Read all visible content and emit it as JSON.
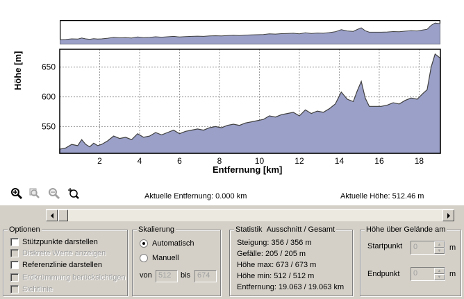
{
  "chart_data": {
    "type": "area",
    "xlabel": "Entfernung [km]",
    "ylabel": "Höhe [m]",
    "xlim": [
      0,
      19.063
    ],
    "ylim": [
      505,
      680
    ],
    "x_ticks": [
      2,
      4,
      6,
      8,
      10,
      12,
      14,
      16,
      18
    ],
    "y_ticks": [
      550,
      600,
      650
    ],
    "fill_color": "#9aa0c8",
    "line_color": "#404040",
    "series": [
      {
        "x": [
          0,
          0.3,
          0.6,
          0.9,
          1.1,
          1.3,
          1.5,
          1.7,
          1.9,
          2.1,
          2.4,
          2.7,
          3.0,
          3.3,
          3.6,
          3.9,
          4.2,
          4.5,
          4.8,
          5.1,
          5.4,
          5.7,
          6.0,
          6.3,
          6.6,
          6.9,
          7.2,
          7.5,
          7.8,
          8.1,
          8.4,
          8.7,
          9.0,
          9.3,
          9.6,
          9.9,
          10.2,
          10.5,
          10.8,
          11.1,
          11.4,
          11.7,
          12.0,
          12.3,
          12.6,
          12.9,
          13.2,
          13.5,
          13.8,
          14.1,
          14.4,
          14.7,
          14.9,
          15.1,
          15.3,
          15.5,
          15.8,
          16.1,
          16.4,
          16.7,
          17.0,
          17.3,
          17.6,
          17.9,
          18.2,
          18.4,
          18.6,
          18.8,
          19.063
        ],
        "y": [
          512,
          514,
          520,
          518,
          528,
          520,
          516,
          522,
          518,
          520,
          526,
          534,
          530,
          532,
          528,
          538,
          532,
          534,
          540,
          536,
          540,
          544,
          538,
          542,
          544,
          546,
          544,
          548,
          550,
          548,
          552,
          554,
          552,
          556,
          558,
          560,
          562,
          568,
          566,
          570,
          572,
          574,
          568,
          578,
          572,
          576,
          574,
          580,
          588,
          608,
          596,
          592,
          610,
          626,
          598,
          584,
          584,
          584,
          586,
          590,
          588,
          594,
          598,
          596,
          606,
          612,
          650,
          672,
          665
        ]
      }
    ]
  },
  "status": {
    "current_distance": "Aktuelle Entfernung: 0.000 km",
    "current_height": "Aktuelle Höhe: 512.46 m"
  },
  "toolbar": {
    "zoom_in_icon": "zoom-in-icon",
    "zoom_area_icon": "zoom-area-icon",
    "zoom_out_icon": "zoom-out-icon",
    "zoom_fit_icon": "zoom-fit-icon"
  },
  "options": {
    "legend": "Optionen",
    "items": [
      {
        "label": "Stützpunkte darstellen",
        "enabled": true
      },
      {
        "label": "Diskrete Werte anzeigen",
        "enabled": false
      },
      {
        "label": "Referenzlinie darstellen",
        "enabled": true
      },
      {
        "label": "Erdkrümmung berücksichtigen",
        "enabled": false
      },
      {
        "label": "Sichtlinie",
        "enabled": false
      }
    ]
  },
  "scaling": {
    "legend": "Skalierung",
    "auto_label": "Automatisch",
    "manual_label": "Manuell",
    "from_label": "von",
    "to_label": "bis",
    "from_value": "512",
    "to_value": "674"
  },
  "statistics": {
    "legend": "Statistik",
    "legend_right": "Ausschnitt / Gesamt",
    "lines": [
      "Steigung: 356 / 356 m",
      "Gefälle: 205 / 205 m",
      "Höhe max: 673 / 673 m",
      "Höhe min: 512 / 512 m",
      "Entfernung: 19.063 / 19.063 km"
    ]
  },
  "height_above": {
    "legend": "Höhe über Gelände am",
    "start_label": "Startpunkt",
    "end_label": "Endpunkt",
    "start_value": "0",
    "end_value": "0",
    "unit": "m"
  }
}
